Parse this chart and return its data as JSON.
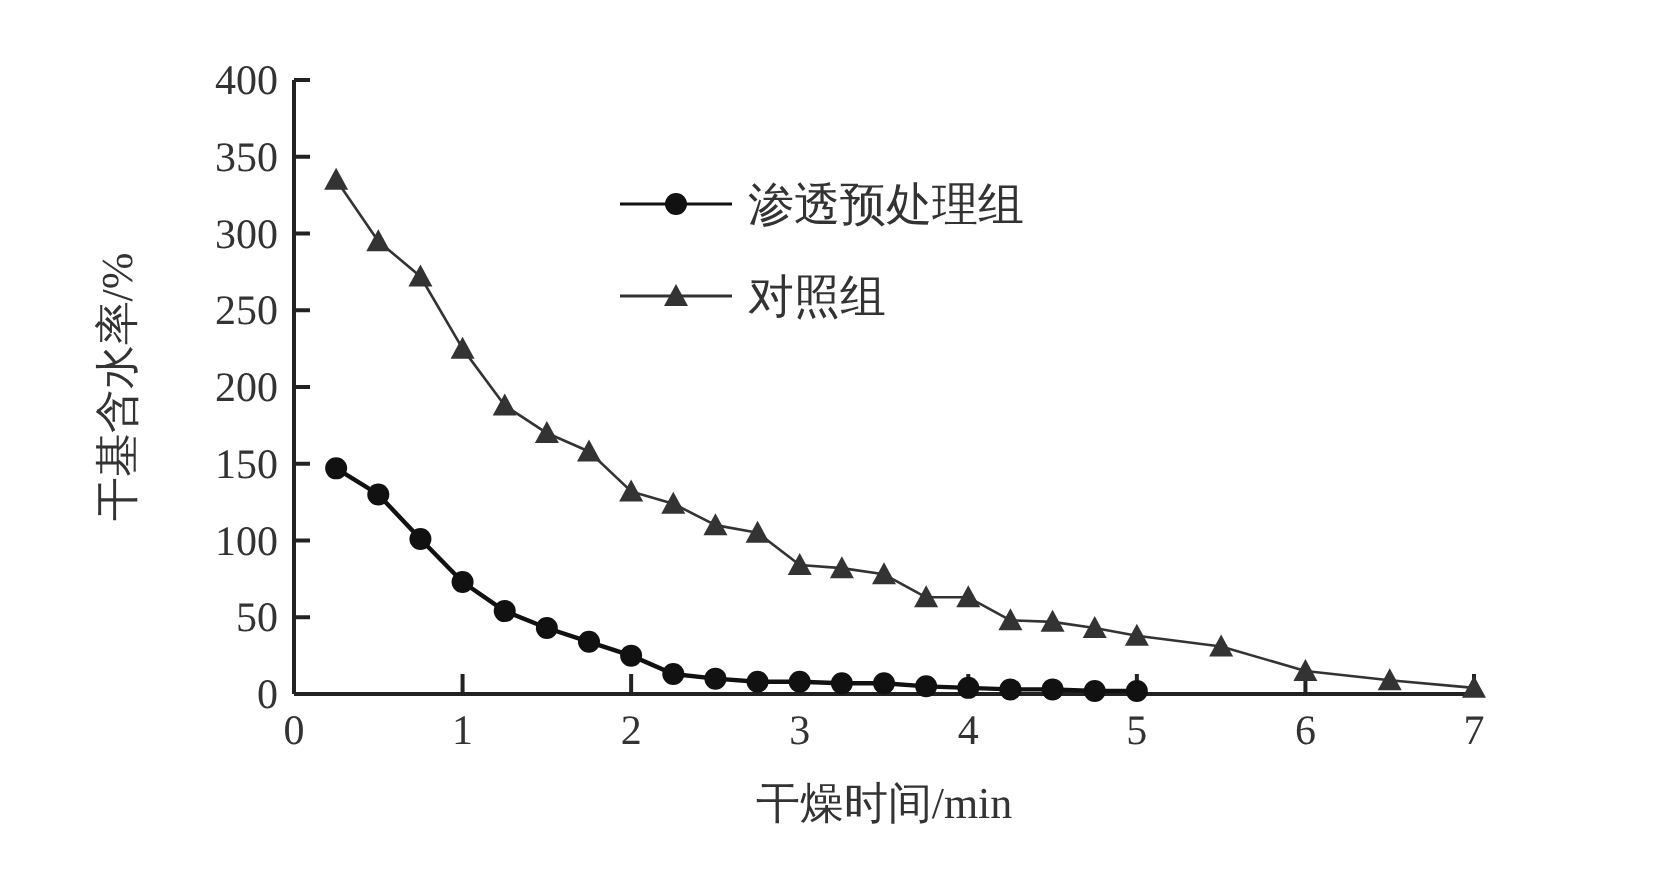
{
  "chart_data": {
    "type": "line",
    "xlabel": "干燥时间/min",
    "ylabel": "干基含水率/%",
    "xlim": [
      0,
      7
    ],
    "ylim": [
      0,
      400
    ],
    "xticks": [
      0,
      1,
      2,
      3,
      4,
      5,
      6,
      7
    ],
    "yticks": [
      0,
      50,
      100,
      150,
      200,
      250,
      300,
      350,
      400
    ],
    "grid": false,
    "legend": "top",
    "series": [
      {
        "name": "渗透预处理组",
        "color": "#111111",
        "marker": "circle",
        "x": [
          0.25,
          0.5,
          0.75,
          1,
          1.25,
          1.5,
          1.75,
          2,
          2.25,
          2.5,
          2.75,
          3,
          3.25,
          3.5,
          3.75,
          4,
          4.25,
          4.5,
          4.75,
          5
        ],
        "values": [
          147,
          130,
          101,
          73,
          54,
          43,
          34,
          25,
          13,
          10,
          8,
          8,
          7,
          7,
          5,
          4,
          3,
          3,
          2,
          2
        ]
      },
      {
        "name": "对照组",
        "color": "#333333",
        "marker": "triangle",
        "x": [
          0.25,
          0.5,
          0.75,
          1,
          1.25,
          1.5,
          1.75,
          2,
          2.25,
          2.5,
          2.75,
          3,
          3.25,
          3.5,
          3.75,
          4,
          4.25,
          4.5,
          4.75,
          5,
          5.5,
          6,
          6.5,
          7
        ],
        "values": [
          335,
          295,
          272,
          225,
          188,
          170,
          158,
          132,
          124,
          110,
          105,
          84,
          82,
          78,
          63,
          63,
          48,
          47,
          43,
          38,
          31,
          15,
          9,
          4
        ]
      }
    ]
  }
}
